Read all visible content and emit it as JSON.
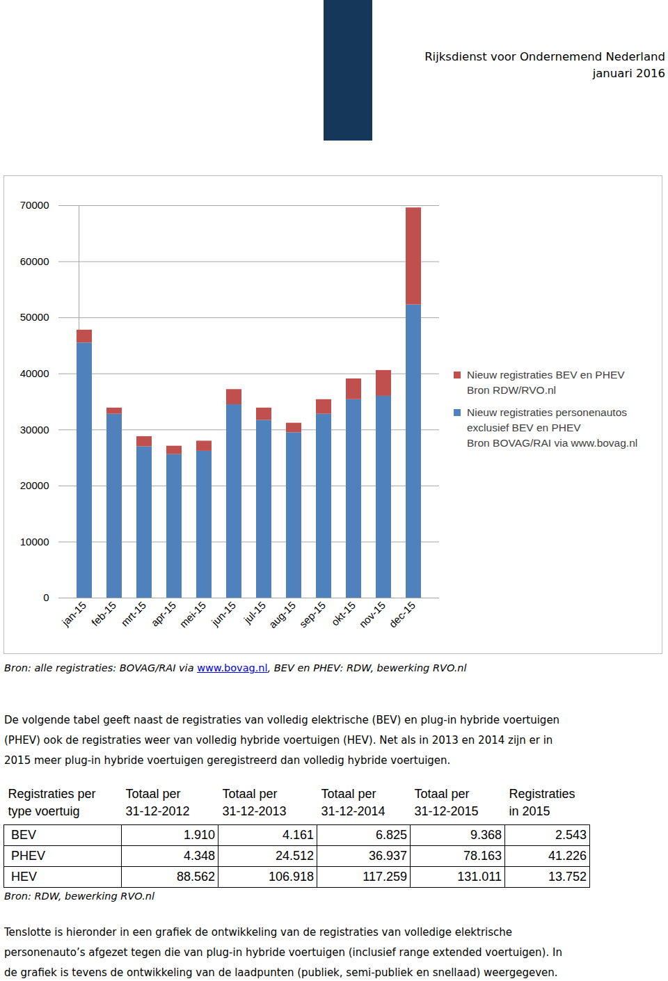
{
  "header": {
    "organisation": "Rijksdienst voor Ondernemend Nederland",
    "date": "januari 2016"
  },
  "chart_data": {
    "type": "bar",
    "stacked": true,
    "grid": true,
    "legend": "right",
    "categories": [
      "jan-15",
      "feb-15",
      "mrt-15",
      "apr-15",
      "mei-15",
      "jun-15",
      "jul-15",
      "aug-15",
      "sep-15",
      "okt-15",
      "nov-15",
      "dec-15"
    ],
    "series": [
      {
        "name": "Nieuw registraties personenautos exclusief BEV en PHEV",
        "source": "Bron BOVAG/RAI via www.bovag.nl",
        "color": "#4f81bd",
        "values": [
          45500,
          32800,
          27000,
          25600,
          26200,
          34500,
          31700,
          29500,
          32800,
          35400,
          36000,
          52300
        ]
      },
      {
        "name": "Nieuw registraties BEV en PHEV",
        "source": "Bron RDW/RVO.nl",
        "color": "#c0504d",
        "values": [
          2300,
          1100,
          1800,
          1500,
          1800,
          2700,
          2200,
          1700,
          2600,
          3700,
          4600,
          17300
        ]
      }
    ],
    "ylim": [
      0,
      70000
    ],
    "yticks": [
      0,
      10000,
      20000,
      30000,
      40000,
      50000,
      60000,
      70000
    ]
  },
  "chart_source": {
    "prefix": "Bron: alle registraties: BOVAG/RAI via ",
    "link": "www.bovag.nl",
    "suffix": ", BEV en PHEV: RDW, bewerking RVO.nl"
  },
  "paragraph_1": [
    "De volgende tabel geeft naast de registraties van volledig elektrische (BEV) en plug-in hybride voertuigen",
    "(PHEV) ook de registraties weer van volledig hybride voertuigen (HEV). Net als in 2013 en 2014 zijn er in",
    "2015 meer plug-in hybride voertuigen geregistreerd dan volledig hybride voertuigen."
  ],
  "table": {
    "header": [
      [
        "Registraties per",
        "type voertuig"
      ],
      [
        "Totaal per",
        "31-12-2012"
      ],
      [
        "Totaal per",
        "31-12-2013"
      ],
      [
        "Totaal per",
        "31-12-2014"
      ],
      [
        "Totaal per",
        "31-12-2015"
      ],
      [
        "Registraties",
        "in 2015"
      ]
    ],
    "rows": [
      [
        "BEV",
        "1.910",
        "4.161",
        "6.825",
        "9.368",
        "2.543"
      ],
      [
        "PHEV",
        "4.348",
        "24.512",
        "36.937",
        "78.163",
        "41.226"
      ],
      [
        "HEV",
        "88.562",
        "106.918",
        "117.259",
        "131.011",
        "13.752"
      ]
    ],
    "source": "Bron: RDW, bewerking RVO.nl"
  },
  "paragraph_2": [
    "Tenslotte is hieronder in een grafiek de ontwikkeling van de registraties van volledige elektrische",
    "personenauto’s afgezet tegen die van plug-in hybride voertuigen (inclusief range extended voertuigen). In",
    "de grafiek is tevens de ontwikkeling van de laadpunten (publiek, semi-publiek en snellaad) weergegeven."
  ]
}
